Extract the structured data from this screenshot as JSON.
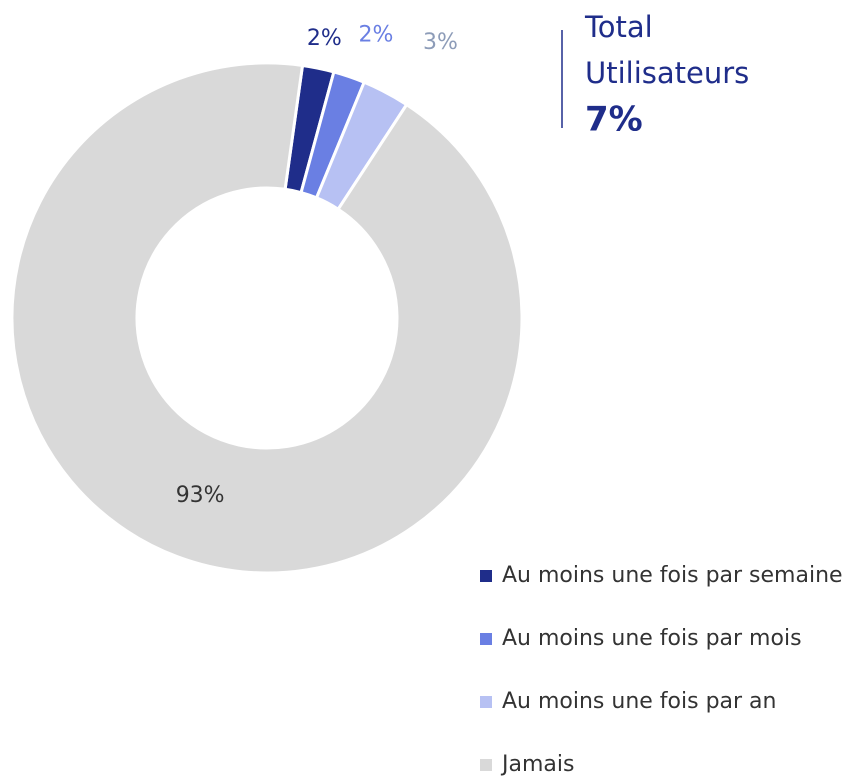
{
  "chart_data": {
    "type": "donut",
    "categories": [
      "Au moins une fois par semaine",
      "Au moins une fois par mois",
      "Au moins une fois par an",
      "Jamais"
    ],
    "values": [
      2,
      2,
      3,
      93
    ],
    "value_labels": [
      "2%",
      "2%",
      "3%",
      "93%"
    ],
    "colors": [
      "#1f2d8a",
      "#6a7fe3",
      "#b7c1f3",
      "#d9d9d9"
    ],
    "label_colors": [
      "#1f2d8a",
      "#6a7fe3",
      "#8d9cb8",
      "#333333"
    ],
    "annotations": [
      "Total",
      "Utilisateurs",
      "7%"
    ],
    "legend": "bottom-right"
  }
}
